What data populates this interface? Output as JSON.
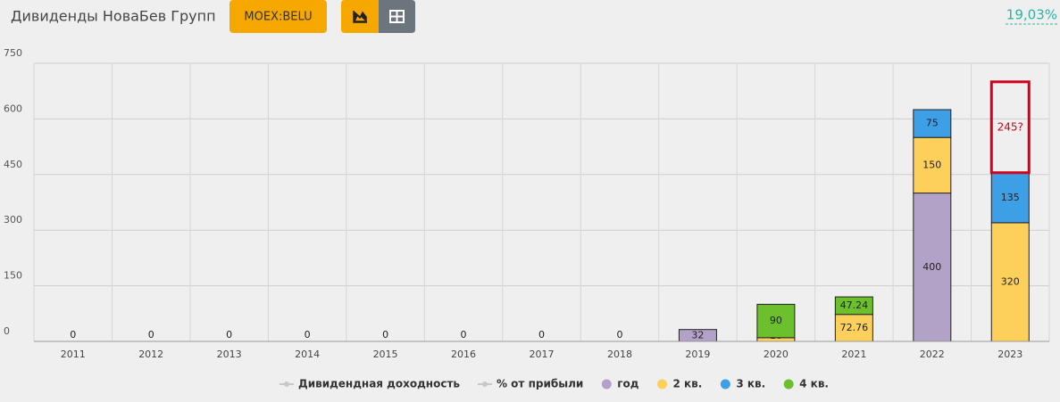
{
  "header": {
    "title": "Дивиденды НоваБев Групп",
    "ticker": "MOEX:BELU",
    "yield": "19,03%"
  },
  "chart_data": {
    "type": "bar",
    "stacked": true,
    "categories": [
      "2011",
      "2012",
      "2013",
      "2014",
      "2015",
      "2016",
      "2017",
      "2018",
      "2019",
      "2020",
      "2021",
      "2022",
      "2023"
    ],
    "series": [
      {
        "name": "Дивидендная доходность",
        "color": "#c8c8c8",
        "kind": "line",
        "values": [
          null,
          null,
          null,
          null,
          null,
          null,
          null,
          null,
          null,
          null,
          null,
          null,
          null
        ]
      },
      {
        "name": "% от прибыли",
        "color": "#c8c8c8",
        "kind": "line",
        "values": [
          null,
          null,
          null,
          null,
          null,
          null,
          null,
          null,
          null,
          null,
          null,
          null,
          null
        ]
      },
      {
        "name": "год",
        "color": "#b3a2c7",
        "values": [
          0,
          0,
          0,
          0,
          0,
          0,
          0,
          0,
          32,
          null,
          null,
          400,
          null
        ]
      },
      {
        "name": "2 кв.",
        "color": "#fdd05b",
        "values": [
          null,
          null,
          null,
          null,
          null,
          null,
          null,
          null,
          null,
          10,
          72.76,
          150,
          320
        ]
      },
      {
        "name": "3 кв.",
        "color": "#3d9fe6",
        "values": [
          null,
          null,
          null,
          null,
          null,
          null,
          null,
          null,
          null,
          null,
          null,
          75,
          135
        ]
      },
      {
        "name": "4 кв.",
        "color": "#6cbf2d",
        "values": [
          null,
          null,
          null,
          null,
          null,
          null,
          null,
          null,
          null,
          90,
          47.24,
          null,
          null
        ]
      }
    ],
    "annotation": {
      "category": 12,
      "value": 245,
      "label": "245?",
      "color": "#d0021b"
    },
    "ylim": [
      0,
      750
    ],
    "yticks": [
      0,
      150,
      300,
      450,
      600,
      750
    ],
    "grid": true
  }
}
